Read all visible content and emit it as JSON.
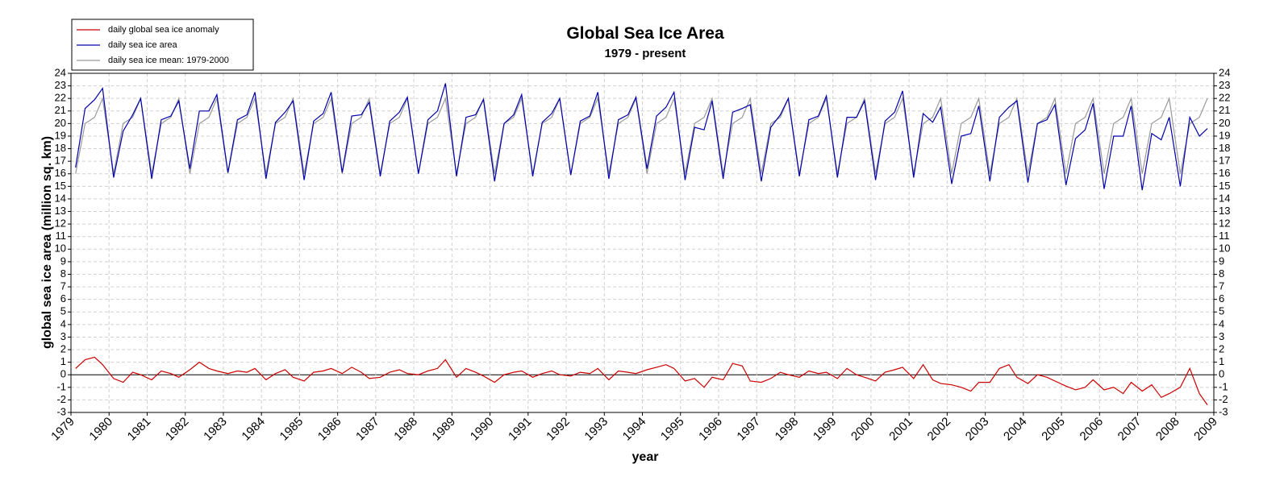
{
  "chart_data": {
    "type": "line",
    "title": "Global Sea Ice Area",
    "subtitle": "1979 - present",
    "xlabel": "year",
    "ylabel": "global sea ice area (million sq. km)",
    "x": [
      1979.12,
      1979.37,
      1979.62,
      1979.83,
      1980.12,
      1980.37,
      1980.62,
      1980.83,
      1981.12,
      1981.37,
      1981.62,
      1981.83,
      1982.12,
      1982.37,
      1982.62,
      1982.83,
      1983.12,
      1983.37,
      1983.62,
      1983.83,
      1984.12,
      1984.37,
      1984.62,
      1984.83,
      1985.12,
      1985.37,
      1985.62,
      1985.83,
      1986.12,
      1986.37,
      1986.62,
      1986.83,
      1987.12,
      1987.37,
      1987.62,
      1987.83,
      1988.12,
      1988.37,
      1988.62,
      1988.83,
      1989.12,
      1989.37,
      1989.62,
      1989.83,
      1990.12,
      1990.37,
      1990.62,
      1990.83,
      1991.12,
      1991.37,
      1991.62,
      1991.83,
      1992.12,
      1992.37,
      1992.62,
      1992.83,
      1993.12,
      1993.37,
      1993.62,
      1993.83,
      1994.12,
      1994.37,
      1994.62,
      1994.83,
      1995.12,
      1995.37,
      1995.62,
      1995.83,
      1996.12,
      1996.37,
      1996.62,
      1996.83,
      1997.12,
      1997.37,
      1997.62,
      1997.83,
      1998.12,
      1998.37,
      1998.62,
      1998.83,
      1999.12,
      1999.37,
      1999.62,
      1999.83,
      2000.12,
      2000.37,
      2000.62,
      2000.83,
      2001.12,
      2001.37,
      2001.62,
      2001.83,
      2002.12,
      2002.37,
      2002.62,
      2002.83,
      2003.12,
      2003.37,
      2003.62,
      2003.83,
      2004.12,
      2004.37,
      2004.62,
      2004.83,
      2005.12,
      2005.37,
      2005.62,
      2005.83,
      2006.12,
      2006.37,
      2006.62,
      2006.83,
      2007.12,
      2007.37,
      2007.62,
      2007.83,
      2008.12,
      2008.37,
      2008.62,
      2008.83
    ],
    "series": [
      {
        "name": "daily global sea ice anomaly",
        "color": "#cc0000",
        "values": [
          0.5,
          1.2,
          1.4,
          0.8,
          -0.3,
          -0.6,
          0.2,
          0.0,
          -0.4,
          0.3,
          0.1,
          -0.2,
          0.4,
          1.0,
          0.5,
          0.3,
          0.1,
          0.3,
          0.2,
          0.5,
          -0.4,
          0.1,
          0.4,
          -0.2,
          -0.5,
          0.2,
          0.3,
          0.5,
          0.1,
          0.6,
          0.2,
          -0.3,
          -0.2,
          0.2,
          0.4,
          0.1,
          0.0,
          0.3,
          0.5,
          1.2,
          -0.2,
          0.5,
          0.2,
          -0.1,
          -0.6,
          0.0,
          0.2,
          0.3,
          -0.2,
          0.1,
          0.3,
          0.0,
          -0.1,
          0.2,
          0.1,
          0.5,
          -0.4,
          0.3,
          0.2,
          0.1,
          0.4,
          0.6,
          0.8,
          0.5,
          -0.5,
          -0.3,
          -1.0,
          -0.2,
          -0.4,
          0.9,
          0.7,
          -0.5,
          -0.6,
          -0.3,
          0.2,
          0.0,
          -0.2,
          0.3,
          0.1,
          0.2,
          -0.3,
          0.5,
          0.0,
          -0.2,
          -0.5,
          0.2,
          0.4,
          0.6,
          -0.3,
          0.8,
          -0.4,
          -0.7,
          -0.8,
          -1.0,
          -1.3,
          -0.6,
          -0.6,
          0.5,
          0.8,
          -0.2,
          -0.7,
          0.0,
          -0.2,
          -0.5,
          -0.9,
          -1.2,
          -1.0,
          -0.4,
          -1.2,
          -1.0,
          -1.5,
          -0.6,
          -1.3,
          -0.8,
          -1.8,
          -1.5,
          -1.0,
          0.5,
          -1.5,
          -2.4
        ]
      },
      {
        "name": "daily sea ice area",
        "color": "#0000aa",
        "values": [
          16.5,
          21.2,
          21.9,
          22.8,
          15.7,
          19.4,
          20.7,
          22.0,
          15.6,
          20.3,
          20.6,
          21.8,
          16.4,
          21.0,
          21.0,
          22.3,
          16.1,
          20.3,
          20.7,
          22.5,
          15.6,
          20.1,
          20.9,
          21.8,
          15.5,
          20.2,
          20.8,
          22.5,
          16.1,
          20.6,
          20.7,
          21.7,
          15.8,
          20.2,
          20.9,
          22.1,
          16.0,
          20.3,
          21.0,
          23.2,
          15.8,
          20.5,
          20.7,
          21.9,
          15.4,
          20.0,
          20.7,
          22.3,
          15.8,
          20.1,
          20.8,
          22.0,
          15.9,
          20.2,
          20.6,
          22.5,
          15.6,
          20.3,
          20.7,
          22.1,
          16.4,
          20.6,
          21.3,
          22.5,
          15.5,
          19.7,
          19.5,
          21.8,
          15.6,
          20.9,
          21.2,
          21.5,
          15.4,
          19.7,
          20.7,
          22.0,
          15.8,
          20.3,
          20.6,
          22.2,
          15.7,
          20.5,
          20.5,
          21.8,
          15.5,
          20.2,
          20.9,
          22.6,
          15.7,
          20.8,
          20.1,
          21.3,
          15.2,
          19.0,
          19.2,
          21.4,
          15.4,
          20.5,
          21.3,
          21.8,
          15.3,
          20.0,
          20.3,
          21.5,
          15.1,
          18.8,
          19.5,
          21.6,
          14.8,
          19.0,
          19.0,
          21.4,
          14.7,
          19.2,
          18.7,
          20.5,
          15.0,
          20.5,
          19.0,
          19.6
        ]
      },
      {
        "name": "daily sea ice mean: 1979-2000",
        "color": "#999999",
        "values": [
          16.0,
          20.0,
          20.5,
          22.0,
          16.0,
          20.0,
          20.5,
          22.0,
          16.0,
          20.0,
          20.5,
          22.0,
          16.0,
          20.0,
          20.5,
          22.0,
          16.0,
          20.0,
          20.5,
          22.0,
          16.0,
          20.0,
          20.5,
          22.0,
          16.0,
          20.0,
          20.5,
          22.0,
          16.0,
          20.0,
          20.5,
          22.0,
          16.0,
          20.0,
          20.5,
          22.0,
          16.0,
          20.0,
          20.5,
          22.0,
          16.0,
          20.0,
          20.5,
          22.0,
          16.0,
          20.0,
          20.5,
          22.0,
          16.0,
          20.0,
          20.5,
          22.0,
          16.0,
          20.0,
          20.5,
          22.0,
          16.0,
          20.0,
          20.5,
          22.0,
          16.0,
          20.0,
          20.5,
          22.0,
          16.0,
          20.0,
          20.5,
          22.0,
          16.0,
          20.0,
          20.5,
          22.0,
          16.0,
          20.0,
          20.5,
          22.0,
          16.0,
          20.0,
          20.5,
          22.0,
          16.0,
          20.0,
          20.5,
          22.0,
          16.0,
          20.0,
          20.5,
          22.0,
          16.0,
          20.0,
          20.5,
          22.0,
          16.0,
          20.0,
          20.5,
          22.0,
          16.0,
          20.0,
          20.5,
          22.0,
          16.0,
          20.0,
          20.5,
          22.0,
          16.0,
          20.0,
          20.5,
          22.0,
          16.0,
          20.0,
          20.5,
          22.0,
          16.0,
          20.0,
          20.5,
          22.0,
          16.0,
          20.0,
          20.5,
          22.0
        ]
      }
    ],
    "xlim": [
      1979,
      2009
    ],
    "xticks": [
      1979,
      1980,
      1981,
      1982,
      1983,
      1984,
      1985,
      1986,
      1987,
      1988,
      1989,
      1990,
      1991,
      1992,
      1993,
      1994,
      1995,
      1996,
      1997,
      1998,
      1999,
      2000,
      2001,
      2002,
      2003,
      2004,
      2005,
      2006,
      2007,
      2008,
      2009
    ],
    "ylim": [
      -3,
      24
    ],
    "yticks": [
      -3,
      -2,
      -1,
      0,
      1,
      2,
      3,
      4,
      5,
      6,
      7,
      8,
      9,
      10,
      11,
      12,
      13,
      14,
      15,
      16,
      17,
      18,
      19,
      20,
      21,
      22,
      23,
      24
    ],
    "grid": true,
    "legend": "upper left"
  }
}
